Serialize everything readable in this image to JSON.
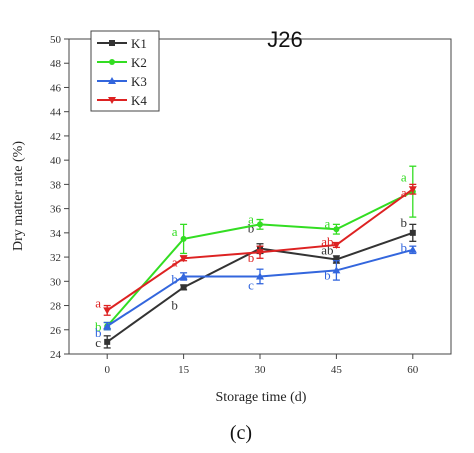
{
  "panel_label": "(c)",
  "chart_data": {
    "type": "line",
    "title": "J26",
    "xlabel": "Storage time (d)",
    "ylabel": "Dry matter rate (%)",
    "x": [
      0,
      15,
      30,
      45,
      60
    ],
    "xlim": [
      -7.5,
      67.5
    ],
    "ylim": [
      24,
      50
    ],
    "x_ticks": [
      "0",
      "15",
      "30",
      "45",
      "60"
    ],
    "y_ticks": [
      "24",
      "26",
      "28",
      "30",
      "32",
      "34",
      "36",
      "38",
      "40",
      "42",
      "44",
      "46",
      "48",
      "50"
    ],
    "grid": false,
    "legend_position": "top-left",
    "series": [
      {
        "name": "K1",
        "color": "#333333",
        "marker": "square",
        "values": [
          25.0,
          29.5,
          32.7,
          31.8,
          34.0
        ],
        "errors": [
          0.5,
          0.2,
          0.4,
          0.3,
          0.7
        ],
        "sig_labels": [
          "c",
          "b",
          "b",
          "ab",
          "b"
        ]
      },
      {
        "name": "K2",
        "color": "#33dd22",
        "marker": "circle",
        "values": [
          26.3,
          33.5,
          34.7,
          34.3,
          37.4
        ],
        "errors": [
          0.3,
          1.2,
          0.4,
          0.4,
          2.1
        ],
        "sig_labels": [
          "b",
          "a",
          "a",
          "a",
          "a"
        ]
      },
      {
        "name": "K3",
        "color": "#3366dd",
        "marker": "triangle-up",
        "values": [
          26.3,
          30.4,
          30.4,
          30.9,
          32.6
        ],
        "errors": [
          0.3,
          0.3,
          0.6,
          0.8,
          0.3
        ],
        "sig_labels": [
          "b",
          "b",
          "c",
          "b",
          "b"
        ]
      },
      {
        "name": "K4",
        "color": "#dd2222",
        "marker": "triangle-down",
        "values": [
          27.6,
          31.9,
          32.4,
          33.0,
          37.6
        ],
        "errors": [
          0.4,
          0.2,
          0.5,
          0.2,
          0.4
        ],
        "sig_labels": [
          "a",
          "a",
          "b",
          "ab",
          "a"
        ]
      }
    ]
  }
}
